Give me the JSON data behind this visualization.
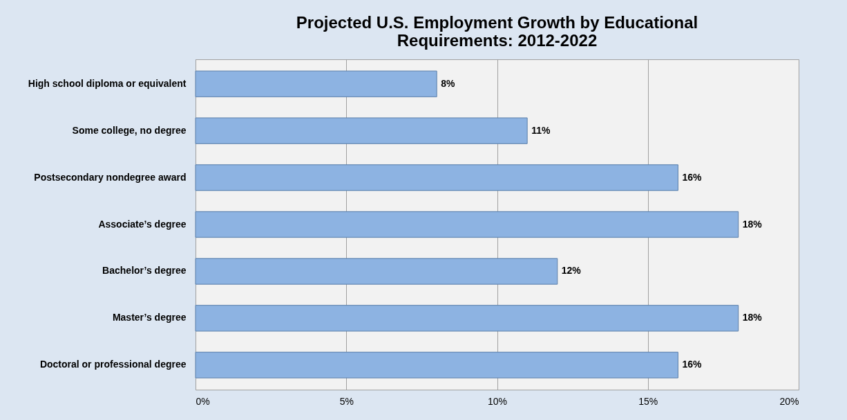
{
  "chart_data": {
    "type": "bar",
    "orientation": "horizontal",
    "title": "Projected U.S. Employment Growth by Educational Requirements: 2012-2022",
    "categories": [
      "High school diploma or equivalent",
      "Some college, no degree",
      "Postsecondary nondegree award",
      "Associate’s degree",
      "Bachelor’s degree",
      "Master’s degree",
      "Doctoral or professional degree"
    ],
    "values": [
      8,
      11,
      16,
      18,
      12,
      18,
      16
    ],
    "value_labels": [
      "8%",
      "11%",
      "16%",
      "18%",
      "12%",
      "18%",
      "16%"
    ],
    "color": "#8db3e2",
    "xlim": [
      0,
      20
    ],
    "xticks": [
      {
        "value": 0,
        "label": "0%"
      },
      {
        "value": 5,
        "label": "5%"
      },
      {
        "value": 10,
        "label": "10%"
      },
      {
        "value": 15,
        "label": "15%"
      },
      {
        "value": 20,
        "label": "20%"
      }
    ],
    "grid": "x"
  }
}
